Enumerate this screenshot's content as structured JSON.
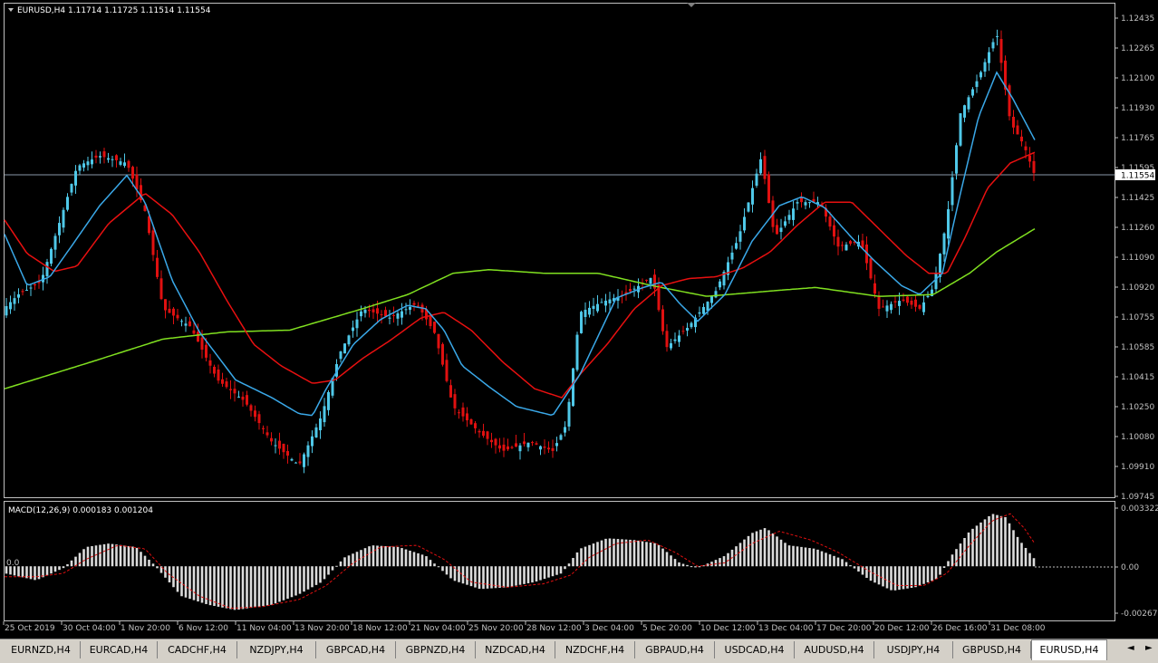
{
  "main_header": {
    "title": "EURUSD,H4",
    "ohlc": "1.11714 1.11725 1.11514 1.11554"
  },
  "macd_header": "MACD(12,26,9) 0.000183 0.001204",
  "price_axis_labels": [
    "1.12435",
    "1.12265",
    "1.12100",
    "1.11930",
    "1.11765",
    "1.11595",
    "1.11425",
    "1.11260",
    "1.11090",
    "1.10920",
    "1.10755",
    "1.10585",
    "1.10415",
    "1.10250",
    "1.10080",
    "1.09910",
    "1.09745"
  ],
  "current_price": "1.11554",
  "macd_axis_labels": [
    "0.003322",
    "0.00",
    "-0.002678"
  ],
  "macd_zero_label": "0.0",
  "time_labels": [
    "25 Oct 2019",
    "30 Oct 04:00",
    "1 Nov 20:00",
    "6 Nov 12:00",
    "11 Nov 04:00",
    "13 Nov 20:00",
    "18 Nov 12:00",
    "21 Nov 04:00",
    "25 Nov 20:00",
    "28 Nov 12:00",
    "3 Dec 04:00",
    "5 Dec 20:00",
    "10 Dec 12:00",
    "13 Dec 04:00",
    "17 Dec 20:00",
    "20 Dec 12:00",
    "26 Dec 16:00",
    "31 Dec 08:00"
  ],
  "tabs": [
    "EURNZD,H4",
    "EURCAD,H4",
    "CADCHF,H4",
    "NZDJPY,H4",
    "GBPCAD,H4",
    "GBPNZD,H4",
    "NZDCAD,H4",
    "NZDCHF,H4",
    "GBPAUD,H4",
    "USDCAD,H4",
    "AUDUSD,H4",
    "USDJPY,H4",
    "GBPUSD,H4",
    "EURUSD,H4"
  ],
  "active_tab": "EURUSD,H4",
  "nav": {
    "left": "◄",
    "right": "►"
  },
  "colors": {
    "bull": "#4fc8e8",
    "bear": "#e01010",
    "fast_ma": "#3aa8e8",
    "slow_ma": "#e81010",
    "long_ma": "#80e020",
    "macd_hist": "#dcdcdc",
    "macd_signal": "#e01010"
  },
  "price_keypoints": [
    [
      0,
      1.1078
    ],
    [
      20,
      1.1088
    ],
    [
      45,
      1.1095
    ],
    [
      85,
      1.116
    ],
    [
      110,
      1.1166
    ],
    [
      140,
      1.1162
    ],
    [
      160,
      1.1135
    ],
    [
      180,
      1.108
    ],
    [
      210,
      1.107
    ],
    [
      240,
      1.104
    ],
    [
      270,
      1.1028
    ],
    [
      300,
      1.1005
    ],
    [
      330,
      1.0992
    ],
    [
      355,
      1.102
    ],
    [
      375,
      1.1055
    ],
    [
      400,
      1.108
    ],
    [
      430,
      1.1075
    ],
    [
      460,
      1.1083
    ],
    [
      480,
      1.1066
    ],
    [
      500,
      1.1025
    ],
    [
      530,
      1.101
    ],
    [
      555,
      1.1
    ],
    [
      585,
      1.1005
    ],
    [
      610,
      1.1
    ],
    [
      625,
      1.1015
    ],
    [
      640,
      1.1078
    ],
    [
      665,
      1.1084
    ],
    [
      690,
      1.1088
    ],
    [
      720,
      1.1098
    ],
    [
      735,
      1.1058
    ],
    [
      760,
      1.107
    ],
    [
      790,
      1.109
    ],
    [
      815,
      1.112
    ],
    [
      840,
      1.1165
    ],
    [
      855,
      1.112
    ],
    [
      880,
      1.114
    ],
    [
      905,
      1.114
    ],
    [
      925,
      1.1115
    ],
    [
      950,
      1.1118
    ],
    [
      970,
      1.108
    ],
    [
      995,
      1.1085
    ],
    [
      1015,
      1.108
    ],
    [
      1030,
      1.1092
    ],
    [
      1045,
      1.113
    ],
    [
      1060,
      1.119
    ],
    [
      1080,
      1.121
    ],
    [
      1100,
      1.1235
    ],
    [
      1115,
      1.1185
    ],
    [
      1130,
      1.1172
    ],
    [
      1142,
      1.1155
    ]
  ],
  "fast_ma_keypoints": [
    [
      5,
      1.1122
    ],
    [
      30,
      1.1093
    ],
    [
      55,
      1.1098
    ],
    [
      80,
      1.1116
    ],
    [
      110,
      1.1138
    ],
    [
      140,
      1.1155
    ],
    [
      160,
      1.114
    ],
    [
      190,
      1.1096
    ],
    [
      220,
      1.1067
    ],
    [
      260,
      1.104
    ],
    [
      300,
      1.103
    ],
    [
      330,
      1.1021
    ],
    [
      345,
      1.102
    ],
    [
      360,
      1.1035
    ],
    [
      390,
      1.106
    ],
    [
      420,
      1.1074
    ],
    [
      450,
      1.1082
    ],
    [
      470,
      1.108
    ],
    [
      490,
      1.1068
    ],
    [
      510,
      1.1048
    ],
    [
      540,
      1.1036
    ],
    [
      570,
      1.1025
    ],
    [
      610,
      1.102
    ],
    [
      640,
      1.1043
    ],
    [
      680,
      1.1086
    ],
    [
      710,
      1.1092
    ],
    [
      730,
      1.1095
    ],
    [
      750,
      1.1083
    ],
    [
      770,
      1.1073
    ],
    [
      800,
      1.1088
    ],
    [
      830,
      1.1118
    ],
    [
      860,
      1.1138
    ],
    [
      885,
      1.1143
    ],
    [
      910,
      1.1137
    ],
    [
      940,
      1.112
    ],
    [
      965,
      1.1107
    ],
    [
      995,
      1.1093
    ],
    [
      1015,
      1.1088
    ],
    [
      1040,
      1.11
    ],
    [
      1060,
      1.1145
    ],
    [
      1080,
      1.1188
    ],
    [
      1100,
      1.1213
    ],
    [
      1118,
      1.1198
    ],
    [
      1142,
      1.1175
    ]
  ],
  "slow_ma_keypoints": [
    [
      5,
      1.113
    ],
    [
      30,
      1.1111
    ],
    [
      60,
      1.1101
    ],
    [
      85,
      1.1104
    ],
    [
      120,
      1.1128
    ],
    [
      160,
      1.1145
    ],
    [
      190,
      1.1133
    ],
    [
      220,
      1.1112
    ],
    [
      250,
      1.1085
    ],
    [
      280,
      1.106
    ],
    [
      310,
      1.1048
    ],
    [
      345,
      1.1038
    ],
    [
      370,
      1.104
    ],
    [
      400,
      1.1052
    ],
    [
      430,
      1.1062
    ],
    [
      465,
      1.1075
    ],
    [
      490,
      1.1078
    ],
    [
      520,
      1.1068
    ],
    [
      555,
      1.105
    ],
    [
      590,
      1.1035
    ],
    [
      620,
      1.103
    ],
    [
      640,
      1.1043
    ],
    [
      670,
      1.106
    ],
    [
      700,
      1.108
    ],
    [
      730,
      1.1093
    ],
    [
      760,
      1.1097
    ],
    [
      790,
      1.1098
    ],
    [
      820,
      1.1103
    ],
    [
      850,
      1.1112
    ],
    [
      880,
      1.1127
    ],
    [
      910,
      1.114
    ],
    [
      940,
      1.114
    ],
    [
      970,
      1.1125
    ],
    [
      1000,
      1.111
    ],
    [
      1025,
      1.11
    ],
    [
      1045,
      1.11
    ],
    [
      1065,
      1.112
    ],
    [
      1090,
      1.1148
    ],
    [
      1115,
      1.1162
    ],
    [
      1142,
      1.1168
    ]
  ],
  "long_ma_keypoints": [
    [
      5,
      1.1035
    ],
    [
      100,
      1.105
    ],
    [
      180,
      1.1063
    ],
    [
      250,
      1.1067
    ],
    [
      320,
      1.1068
    ],
    [
      400,
      1.108
    ],
    [
      450,
      1.1088
    ],
    [
      500,
      1.11
    ],
    [
      540,
      1.1102
    ],
    [
      600,
      1.11
    ],
    [
      660,
      1.11
    ],
    [
      720,
      1.1093
    ],
    [
      780,
      1.1087
    ],
    [
      850,
      1.109
    ],
    [
      900,
      1.1092
    ],
    [
      970,
      1.1087
    ],
    [
      1030,
      1.1088
    ],
    [
      1070,
      1.11
    ],
    [
      1100,
      1.1112
    ],
    [
      1142,
      1.1125
    ]
  ],
  "macd_keypoints": [
    [
      5,
      -0.0004
    ],
    [
      40,
      -0.0008
    ],
    [
      70,
      -0.0001
    ],
    [
      95,
      0.0011
    ],
    [
      120,
      0.0013
    ],
    [
      150,
      0.0011
    ],
    [
      170,
      0.0001
    ],
    [
      200,
      -0.0017
    ],
    [
      230,
      -0.0022
    ],
    [
      260,
      -0.0025
    ],
    [
      300,
      -0.0022
    ],
    [
      330,
      -0.0016
    ],
    [
      355,
      -0.0009
    ],
    [
      380,
      0.0005
    ],
    [
      410,
      0.0012
    ],
    [
      440,
      0.0011
    ],
    [
      470,
      0.0006
    ],
    [
      500,
      -0.0008
    ],
    [
      530,
      -0.0013
    ],
    [
      560,
      -0.0012
    ],
    [
      590,
      -0.0009
    ],
    [
      620,
      -0.0004
    ],
    [
      640,
      0.001
    ],
    [
      670,
      0.0016
    ],
    [
      700,
      0.0015
    ],
    [
      725,
      0.0013
    ],
    [
      750,
      0.0002
    ],
    [
      770,
      -0.0001
    ],
    [
      800,
      0.0006
    ],
    [
      830,
      0.0019
    ],
    [
      845,
      0.0022
    ],
    [
      870,
      0.0012
    ],
    [
      900,
      0.001
    ],
    [
      930,
      0.0004
    ],
    [
      960,
      -0.0008
    ],
    [
      985,
      -0.0014
    ],
    [
      1010,
      -0.0012
    ],
    [
      1035,
      -0.0007
    ],
    [
      1050,
      0.0006
    ],
    [
      1070,
      0.002
    ],
    [
      1095,
      0.003
    ],
    [
      1110,
      0.0028
    ],
    [
      1125,
      0.0015
    ],
    [
      1142,
      0.0004
    ]
  ],
  "macd_signal_keypoints": [
    [
      5,
      -0.0006
    ],
    [
      40,
      -0.0006
    ],
    [
      70,
      -0.0004
    ],
    [
      95,
      0.0004
    ],
    [
      130,
      0.0012
    ],
    [
      160,
      0.001
    ],
    [
      185,
      -0.0004
    ],
    [
      220,
      -0.0017
    ],
    [
      255,
      -0.0024
    ],
    [
      290,
      -0.0023
    ],
    [
      330,
      -0.0019
    ],
    [
      360,
      -0.0011
    ],
    [
      390,
      0.0002
    ],
    [
      420,
      0.0011
    ],
    [
      460,
      0.0012
    ],
    [
      490,
      0.0004
    ],
    [
      520,
      -0.0009
    ],
    [
      560,
      -0.0012
    ],
    [
      600,
      -0.001
    ],
    [
      630,
      -0.0005
    ],
    [
      650,
      0.0005
    ],
    [
      680,
      0.0013
    ],
    [
      715,
      0.0015
    ],
    [
      745,
      0.0008
    ],
    [
      770,
      0.0
    ],
    [
      800,
      0.0002
    ],
    [
      830,
      0.0013
    ],
    [
      860,
      0.002
    ],
    [
      895,
      0.0015
    ],
    [
      925,
      0.0008
    ],
    [
      960,
      -0.0003
    ],
    [
      990,
      -0.0011
    ],
    [
      1020,
      -0.0011
    ],
    [
      1045,
      -0.0004
    ],
    [
      1070,
      0.0012
    ],
    [
      1095,
      0.0026
    ],
    [
      1115,
      0.003
    ],
    [
      1130,
      0.0022
    ],
    [
      1142,
      0.0013
    ]
  ]
}
